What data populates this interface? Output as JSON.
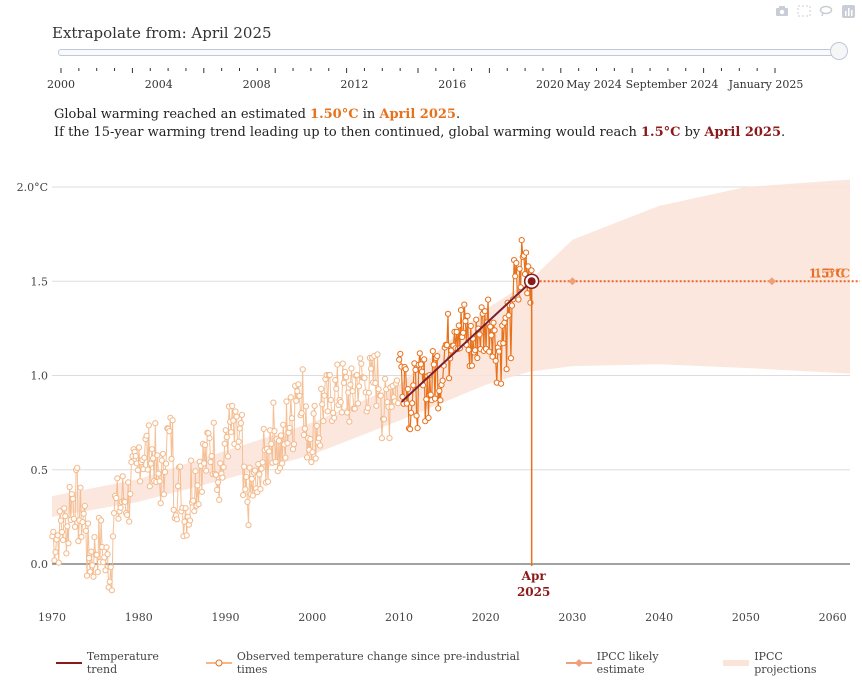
{
  "slider": {
    "title_prefix": "Extrapolate from: ",
    "current": "April 2025",
    "ticks": [
      "2000",
      "2004",
      "2008",
      "2012",
      "2016",
      "2020",
      "May 2024",
      "September 2024",
      "January 2025"
    ],
    "position": 1.0
  },
  "summary": {
    "l1_a": "Global warming reached an estimated ",
    "l1_val": "1.50°C",
    "l1_b": " in ",
    "l1_date": "April 2025",
    "l1_c": ".",
    "l2_a": "If the 15-year warming trend leading up to then continued, global warming would reach ",
    "l2_val": "1.5°C",
    "l2_b": " by ",
    "l2_date": "April 2025",
    "l2_c": "."
  },
  "annotations": {
    "apr_label_line1": "Apr",
    "apr_label_line2": "2025",
    "end_label": "1.5°C",
    "end_label_overlap": "1.5°C"
  },
  "legend": {
    "trend": "Temperature trend",
    "observed": "Observed temperature change since pre-industrial times",
    "likely": "IPCC likely estimate",
    "projections": "IPCC projections"
  },
  "colors": {
    "observed": "#e8711c",
    "observed_light": "#f4b98a",
    "trend": "#7b1f2e",
    "ipcc_line": "#e86b2c",
    "band": "#fbe3d8",
    "marker_fill": "#8b1a1a",
    "axis_text": "#444444",
    "grid": "#dddddd"
  },
  "chart_data": {
    "type": "line",
    "x_range": [
      1970,
      2062
    ],
    "y_range": [
      -0.2,
      2.05
    ],
    "y_ticks": [
      0.0,
      0.5,
      1.0,
      1.5,
      2.0
    ],
    "y_tick_labels": [
      "0.0",
      "0.5",
      "1.0",
      "1.5",
      "2.0°C"
    ],
    "x_ticks": [
      1970,
      1980,
      1990,
      2000,
      2010,
      2020,
      2030,
      2040,
      2050,
      2060
    ],
    "x_tick_labels": [
      "1970",
      "1980",
      "1990",
      "2000",
      "2010",
      "2020",
      "2030",
      "2040",
      "2050",
      "2060"
    ],
    "grid": true,
    "legend_position": "bottom",
    "series": [
      {
        "name": "Observed temperature change since pre-industrial times",
        "kind": "annual_mean_estimate",
        "x": [
          1970,
          1971,
          1972,
          1973,
          1974,
          1975,
          1976,
          1977,
          1978,
          1979,
          1980,
          1981,
          1982,
          1983,
          1984,
          1985,
          1986,
          1987,
          1988,
          1989,
          1990,
          1991,
          1992,
          1993,
          1994,
          1995,
          1996,
          1997,
          1998,
          1999,
          2000,
          2001,
          2002,
          2003,
          2004,
          2005,
          2006,
          2007,
          2008,
          2009,
          2010,
          2011,
          2012,
          2013,
          2014,
          2015,
          2016,
          2017,
          2018,
          2019,
          2020,
          2021,
          2022,
          2023,
          2024,
          2025
        ],
        "values": [
          0.15,
          0.2,
          0.35,
          0.25,
          0.05,
          0.1,
          0.0,
          0.3,
          0.35,
          0.45,
          0.6,
          0.58,
          0.45,
          0.65,
          0.4,
          0.3,
          0.45,
          0.55,
          0.62,
          0.5,
          0.7,
          0.65,
          0.35,
          0.4,
          0.55,
          0.7,
          0.6,
          0.75,
          0.95,
          0.7,
          0.72,
          0.85,
          0.9,
          0.92,
          0.88,
          0.98,
          0.95,
          0.98,
          0.82,
          0.95,
          1.05,
          0.88,
          0.92,
          0.95,
          1.02,
          1.15,
          1.3,
          1.22,
          1.15,
          1.25,
          1.3,
          1.15,
          1.2,
          1.45,
          1.6,
          1.55
        ]
      },
      {
        "name": "Temperature trend",
        "x": [
          2010.3,
          2025.3
        ],
        "values": [
          0.86,
          1.5
        ]
      },
      {
        "name": "IPCC likely estimate",
        "x": [
          2025.3,
          2030,
          2053,
          2062
        ],
        "values": [
          1.5,
          1.5,
          1.5,
          1.5
        ]
      },
      {
        "name": "IPCC projections",
        "kind": "band",
        "x": [
          1970,
          1980,
          1990,
          2000,
          2010,
          2020,
          2025,
          2030,
          2040,
          2050,
          2062
        ],
        "lower": [
          0.25,
          0.33,
          0.45,
          0.58,
          0.76,
          0.95,
          1.02,
          1.05,
          1.06,
          1.04,
          1.01
        ],
        "upper": [
          0.36,
          0.45,
          0.6,
          0.75,
          0.95,
          1.35,
          1.5,
          1.72,
          1.9,
          2.0,
          2.04
        ]
      }
    ],
    "highlight": {
      "x": 2025.3,
      "y": 1.5
    }
  }
}
